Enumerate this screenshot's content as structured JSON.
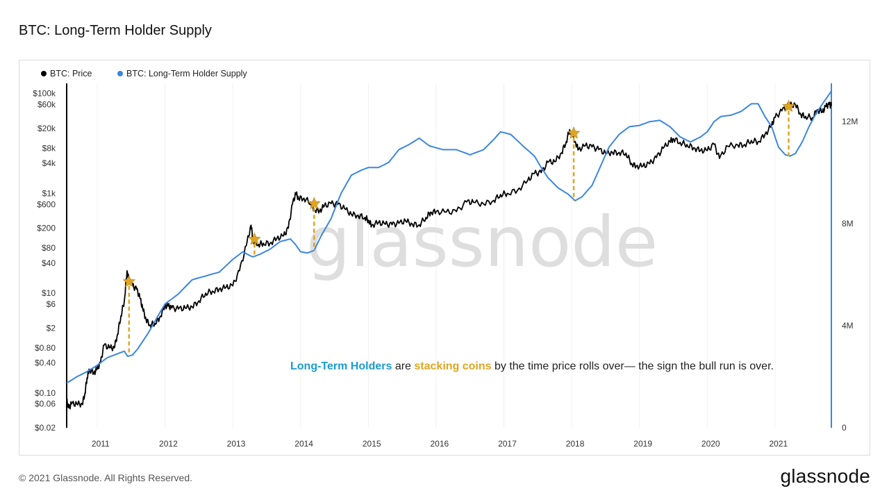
{
  "title": "BTC: Long-Term Holder Supply",
  "footer": {
    "copyright": "© 2021 Glassnode. All Rights Reserved.",
    "logo": "glassnode"
  },
  "watermark": "glassnode",
  "colors": {
    "price": "#000000",
    "lth": "#3a86e0",
    "star": "#e0a520",
    "annot_blue": "#1a9bd1",
    "annot_orange": "#e0a520",
    "axis": "#000000",
    "right_axis": "#3a86e0"
  },
  "annotation": {
    "part1": "Long-Term Holders",
    "part2": " are ",
    "part3": "stacking coins",
    "part4": " by the time price rolls over— the sign the bull run is over."
  },
  "chart_data": {
    "type": "line",
    "title": "BTC: Long-Term Holder Supply",
    "x_ticks": [
      "2011",
      "2012",
      "2013",
      "2014",
      "2015",
      "2016",
      "2017",
      "2018",
      "2019",
      "2020",
      "2021"
    ],
    "x_range": [
      2010.55,
      2021.83
    ],
    "y_left": {
      "label": "BTC: Price",
      "scale": "log",
      "range": [
        0.02,
        160000
      ],
      "ticks": [
        {
          "v": 100000,
          "label": "$100k"
        },
        {
          "v": 60000,
          "label": "$60k"
        },
        {
          "v": 20000,
          "label": "$20k"
        },
        {
          "v": 8000,
          "label": "$8k"
        },
        {
          "v": 4000,
          "label": "$4k"
        },
        {
          "v": 1000,
          "label": "$1k"
        },
        {
          "v": 600,
          "label": "$600"
        },
        {
          "v": 200,
          "label": "$200"
        },
        {
          "v": 80,
          "label": "$80"
        },
        {
          "v": 40,
          "label": "$40"
        },
        {
          "v": 10,
          "label": "$10"
        },
        {
          "v": 6,
          "label": "$6"
        },
        {
          "v": 2,
          "label": "$2"
        },
        {
          "v": 0.8,
          "label": "$0.80"
        },
        {
          "v": 0.4,
          "label": "$0.40"
        },
        {
          "v": 0.1,
          "label": "$0.10"
        },
        {
          "v": 0.06,
          "label": "$0.06"
        },
        {
          "v": 0.02,
          "label": "$0.02"
        }
      ]
    },
    "y_right": {
      "label": "BTC: Long-Term Holder Supply",
      "scale": "linear",
      "range": [
        0,
        13500000
      ],
      "ticks": [
        {
          "v": 12000000,
          "label": "12M"
        },
        {
          "v": 8000000,
          "label": "8M"
        },
        {
          "v": 4000000,
          "label": "4M"
        },
        {
          "v": 0,
          "label": "0"
        }
      ]
    },
    "legend": {
      "placement": "top-left",
      "entries": [
        "BTC: Price",
        "BTC: Long-Term Holder Supply"
      ]
    },
    "grid": true,
    "series": [
      {
        "name": "BTC: Price",
        "axis": "left",
        "points": [
          [
            2010.55,
            0.07
          ],
          [
            2010.58,
            0.05
          ],
          [
            2010.62,
            0.06
          ],
          [
            2010.7,
            0.06
          ],
          [
            2010.78,
            0.06
          ],
          [
            2010.82,
            0.1
          ],
          [
            2010.85,
            0.2
          ],
          [
            2010.88,
            0.3
          ],
          [
            2010.95,
            0.25
          ],
          [
            2011.0,
            0.3
          ],
          [
            2011.05,
            0.4
          ],
          [
            2011.1,
            0.9
          ],
          [
            2011.18,
            0.8
          ],
          [
            2011.25,
            0.8
          ],
          [
            2011.3,
            1.5
          ],
          [
            2011.35,
            3.5
          ],
          [
            2011.4,
            7
          ],
          [
            2011.44,
            28
          ],
          [
            2011.47,
            18
          ],
          [
            2011.52,
            14
          ],
          [
            2011.58,
            12
          ],
          [
            2011.63,
            8
          ],
          [
            2011.67,
            5
          ],
          [
            2011.72,
            3
          ],
          [
            2011.78,
            2.3
          ],
          [
            2011.85,
            2.5
          ],
          [
            2011.92,
            3.2
          ],
          [
            2012.0,
            5.5
          ],
          [
            2012.05,
            5.5
          ],
          [
            2012.1,
            5
          ],
          [
            2012.2,
            4.8
          ],
          [
            2012.3,
            5
          ],
          [
            2012.4,
            5.3
          ],
          [
            2012.5,
            7
          ],
          [
            2012.6,
            10
          ],
          [
            2012.7,
            11
          ],
          [
            2012.8,
            12
          ],
          [
            2012.9,
            13
          ],
          [
            2013.0,
            14
          ],
          [
            2013.1,
            28
          ],
          [
            2013.2,
            90
          ],
          [
            2013.27,
            230
          ],
          [
            2013.3,
            110
          ],
          [
            2013.38,
            95
          ],
          [
            2013.45,
            100
          ],
          [
            2013.55,
            100
          ],
          [
            2013.65,
            125
          ],
          [
            2013.75,
            140
          ],
          [
            2013.82,
            200
          ],
          [
            2013.88,
            600
          ],
          [
            2013.93,
            1000
          ],
          [
            2013.97,
            800
          ],
          [
            2014.05,
            800
          ],
          [
            2014.15,
            650
          ],
          [
            2014.2,
            480
          ],
          [
            2014.28,
            440
          ],
          [
            2014.35,
            560
          ],
          [
            2014.45,
            620
          ],
          [
            2014.55,
            600
          ],
          [
            2014.65,
            490
          ],
          [
            2014.75,
            380
          ],
          [
            2014.85,
            360
          ],
          [
            2014.95,
            330
          ],
          [
            2015.0,
            290
          ],
          [
            2015.05,
            230
          ],
          [
            2015.15,
            260
          ],
          [
            2015.25,
            240
          ],
          [
            2015.35,
            235
          ],
          [
            2015.45,
            250
          ],
          [
            2015.55,
            280
          ],
          [
            2015.65,
            240
          ],
          [
            2015.75,
            235
          ],
          [
            2015.85,
            330
          ],
          [
            2015.92,
            420
          ],
          [
            2016.0,
            430
          ],
          [
            2016.15,
            420
          ],
          [
            2016.3,
            430
          ],
          [
            2016.45,
            670
          ],
          [
            2016.55,
            660
          ],
          [
            2016.7,
            610
          ],
          [
            2016.85,
            720
          ],
          [
            2016.95,
            950
          ],
          [
            2017.05,
            1000
          ],
          [
            2017.2,
            1150
          ],
          [
            2017.35,
            1800
          ],
          [
            2017.45,
            2500
          ],
          [
            2017.55,
            2600
          ],
          [
            2017.65,
            4200
          ],
          [
            2017.75,
            4300
          ],
          [
            2017.85,
            6500
          ],
          [
            2017.92,
            11000
          ],
          [
            2017.97,
            19000
          ],
          [
            2018.05,
            11000
          ],
          [
            2018.1,
            7500
          ],
          [
            2018.2,
            9000
          ],
          [
            2018.3,
            8500
          ],
          [
            2018.4,
            7500
          ],
          [
            2018.5,
            6300
          ],
          [
            2018.6,
            6600
          ],
          [
            2018.7,
            6600
          ],
          [
            2018.8,
            6400
          ],
          [
            2018.88,
            4000
          ],
          [
            2018.95,
            3500
          ],
          [
            2019.05,
            3500
          ],
          [
            2019.15,
            3900
          ],
          [
            2019.25,
            5200
          ],
          [
            2019.35,
            8000
          ],
          [
            2019.45,
            11000
          ],
          [
            2019.5,
            12500
          ],
          [
            2019.6,
            10500
          ],
          [
            2019.7,
            9500
          ],
          [
            2019.8,
            8200
          ],
          [
            2019.9,
            7200
          ],
          [
            2020.0,
            7200
          ],
          [
            2020.1,
            9600
          ],
          [
            2020.18,
            5000
          ],
          [
            2020.3,
            8800
          ],
          [
            2020.45,
            9300
          ],
          [
            2020.55,
            9500
          ],
          [
            2020.65,
            11500
          ],
          [
            2020.75,
            10800
          ],
          [
            2020.85,
            15000
          ],
          [
            2020.95,
            23000
          ],
          [
            2021.0,
            33000
          ],
          [
            2021.1,
            45000
          ],
          [
            2021.2,
            58000
          ],
          [
            2021.3,
            60000
          ],
          [
            2021.38,
            38000
          ],
          [
            2021.45,
            35000
          ],
          [
            2021.55,
            33000
          ],
          [
            2021.62,
            47000
          ],
          [
            2021.7,
            43000
          ],
          [
            2021.75,
            55000
          ],
          [
            2021.8,
            60000
          ],
          [
            2021.83,
            57000
          ]
        ]
      },
      {
        "name": "BTC: Long-Term Holder Supply",
        "axis": "right",
        "points": [
          [
            2010.55,
            1750000
          ],
          [
            2010.7,
            2000000
          ],
          [
            2010.85,
            2200000
          ],
          [
            2011.0,
            2450000
          ],
          [
            2011.15,
            2750000
          ],
          [
            2011.3,
            2900000
          ],
          [
            2011.4,
            3000000
          ],
          [
            2011.45,
            2800000
          ],
          [
            2011.52,
            2850000
          ],
          [
            2011.6,
            3100000
          ],
          [
            2011.75,
            3700000
          ],
          [
            2011.9,
            4400000
          ],
          [
            2012.0,
            4850000
          ],
          [
            2012.2,
            5250000
          ],
          [
            2012.4,
            5800000
          ],
          [
            2012.6,
            5950000
          ],
          [
            2012.8,
            6100000
          ],
          [
            2013.0,
            6600000
          ],
          [
            2013.15,
            6900000
          ],
          [
            2013.25,
            6750000
          ],
          [
            2013.3,
            6700000
          ],
          [
            2013.4,
            6800000
          ],
          [
            2013.55,
            7000000
          ],
          [
            2013.7,
            7300000
          ],
          [
            2013.85,
            7400000
          ],
          [
            2013.92,
            7200000
          ],
          [
            2014.0,
            6900000
          ],
          [
            2014.1,
            6850000
          ],
          [
            2014.15,
            6900000
          ],
          [
            2014.2,
            6950000
          ],
          [
            2014.3,
            7500000
          ],
          [
            2014.45,
            8200000
          ],
          [
            2014.6,
            9200000
          ],
          [
            2014.75,
            9900000
          ],
          [
            2014.9,
            10100000
          ],
          [
            2015.0,
            10200000
          ],
          [
            2015.15,
            10200000
          ],
          [
            2015.3,
            10400000
          ],
          [
            2015.45,
            10900000
          ],
          [
            2015.6,
            11100000
          ],
          [
            2015.75,
            11350000
          ],
          [
            2015.9,
            11050000
          ],
          [
            2016.1,
            10900000
          ],
          [
            2016.3,
            10900000
          ],
          [
            2016.5,
            10700000
          ],
          [
            2016.7,
            10900000
          ],
          [
            2016.85,
            11300000
          ],
          [
            2016.95,
            11600000
          ],
          [
            2017.1,
            11500000
          ],
          [
            2017.3,
            11000000
          ],
          [
            2017.45,
            10650000
          ],
          [
            2017.55,
            10200000
          ],
          [
            2017.65,
            9800000
          ],
          [
            2017.8,
            9400000
          ],
          [
            2017.95,
            9150000
          ],
          [
            2018.05,
            8900000
          ],
          [
            2018.15,
            9050000
          ],
          [
            2018.3,
            9500000
          ],
          [
            2018.45,
            10400000
          ],
          [
            2018.55,
            11000000
          ],
          [
            2018.7,
            11500000
          ],
          [
            2018.85,
            11800000
          ],
          [
            2019.0,
            11850000
          ],
          [
            2019.15,
            12000000
          ],
          [
            2019.3,
            12050000
          ],
          [
            2019.45,
            11800000
          ],
          [
            2019.6,
            11400000
          ],
          [
            2019.75,
            11200000
          ],
          [
            2019.9,
            11400000
          ],
          [
            2020.0,
            11600000
          ],
          [
            2020.1,
            12000000
          ],
          [
            2020.2,
            12200000
          ],
          [
            2020.35,
            12250000
          ],
          [
            2020.5,
            12400000
          ],
          [
            2020.65,
            12700000
          ],
          [
            2020.75,
            12700000
          ],
          [
            2020.85,
            12200000
          ],
          [
            2020.95,
            11800000
          ],
          [
            2021.05,
            11000000
          ],
          [
            2021.15,
            10700000
          ],
          [
            2021.22,
            10650000
          ],
          [
            2021.3,
            10750000
          ],
          [
            2021.4,
            11200000
          ],
          [
            2021.5,
            11800000
          ],
          [
            2021.6,
            12300000
          ],
          [
            2021.7,
            12700000
          ],
          [
            2021.78,
            13000000
          ],
          [
            2021.83,
            13200000
          ]
        ]
      }
    ],
    "markers": [
      {
        "type": "star",
        "x": 2011.47,
        "y_left": 17,
        "drop_to_lth": 2850000
      },
      {
        "type": "star",
        "x": 2013.32,
        "y_left": 120,
        "drop_to_lth": 6700000
      },
      {
        "type": "star",
        "x": 2014.2,
        "y_left": 620,
        "drop_to_lth": 6950000
      },
      {
        "type": "star",
        "x": 2018.03,
        "y_left": 16000,
        "drop_to_lth": 8900000
      },
      {
        "type": "star",
        "x": 2021.2,
        "y_left": 55000,
        "drop_to_lth": 10650000
      }
    ]
  }
}
